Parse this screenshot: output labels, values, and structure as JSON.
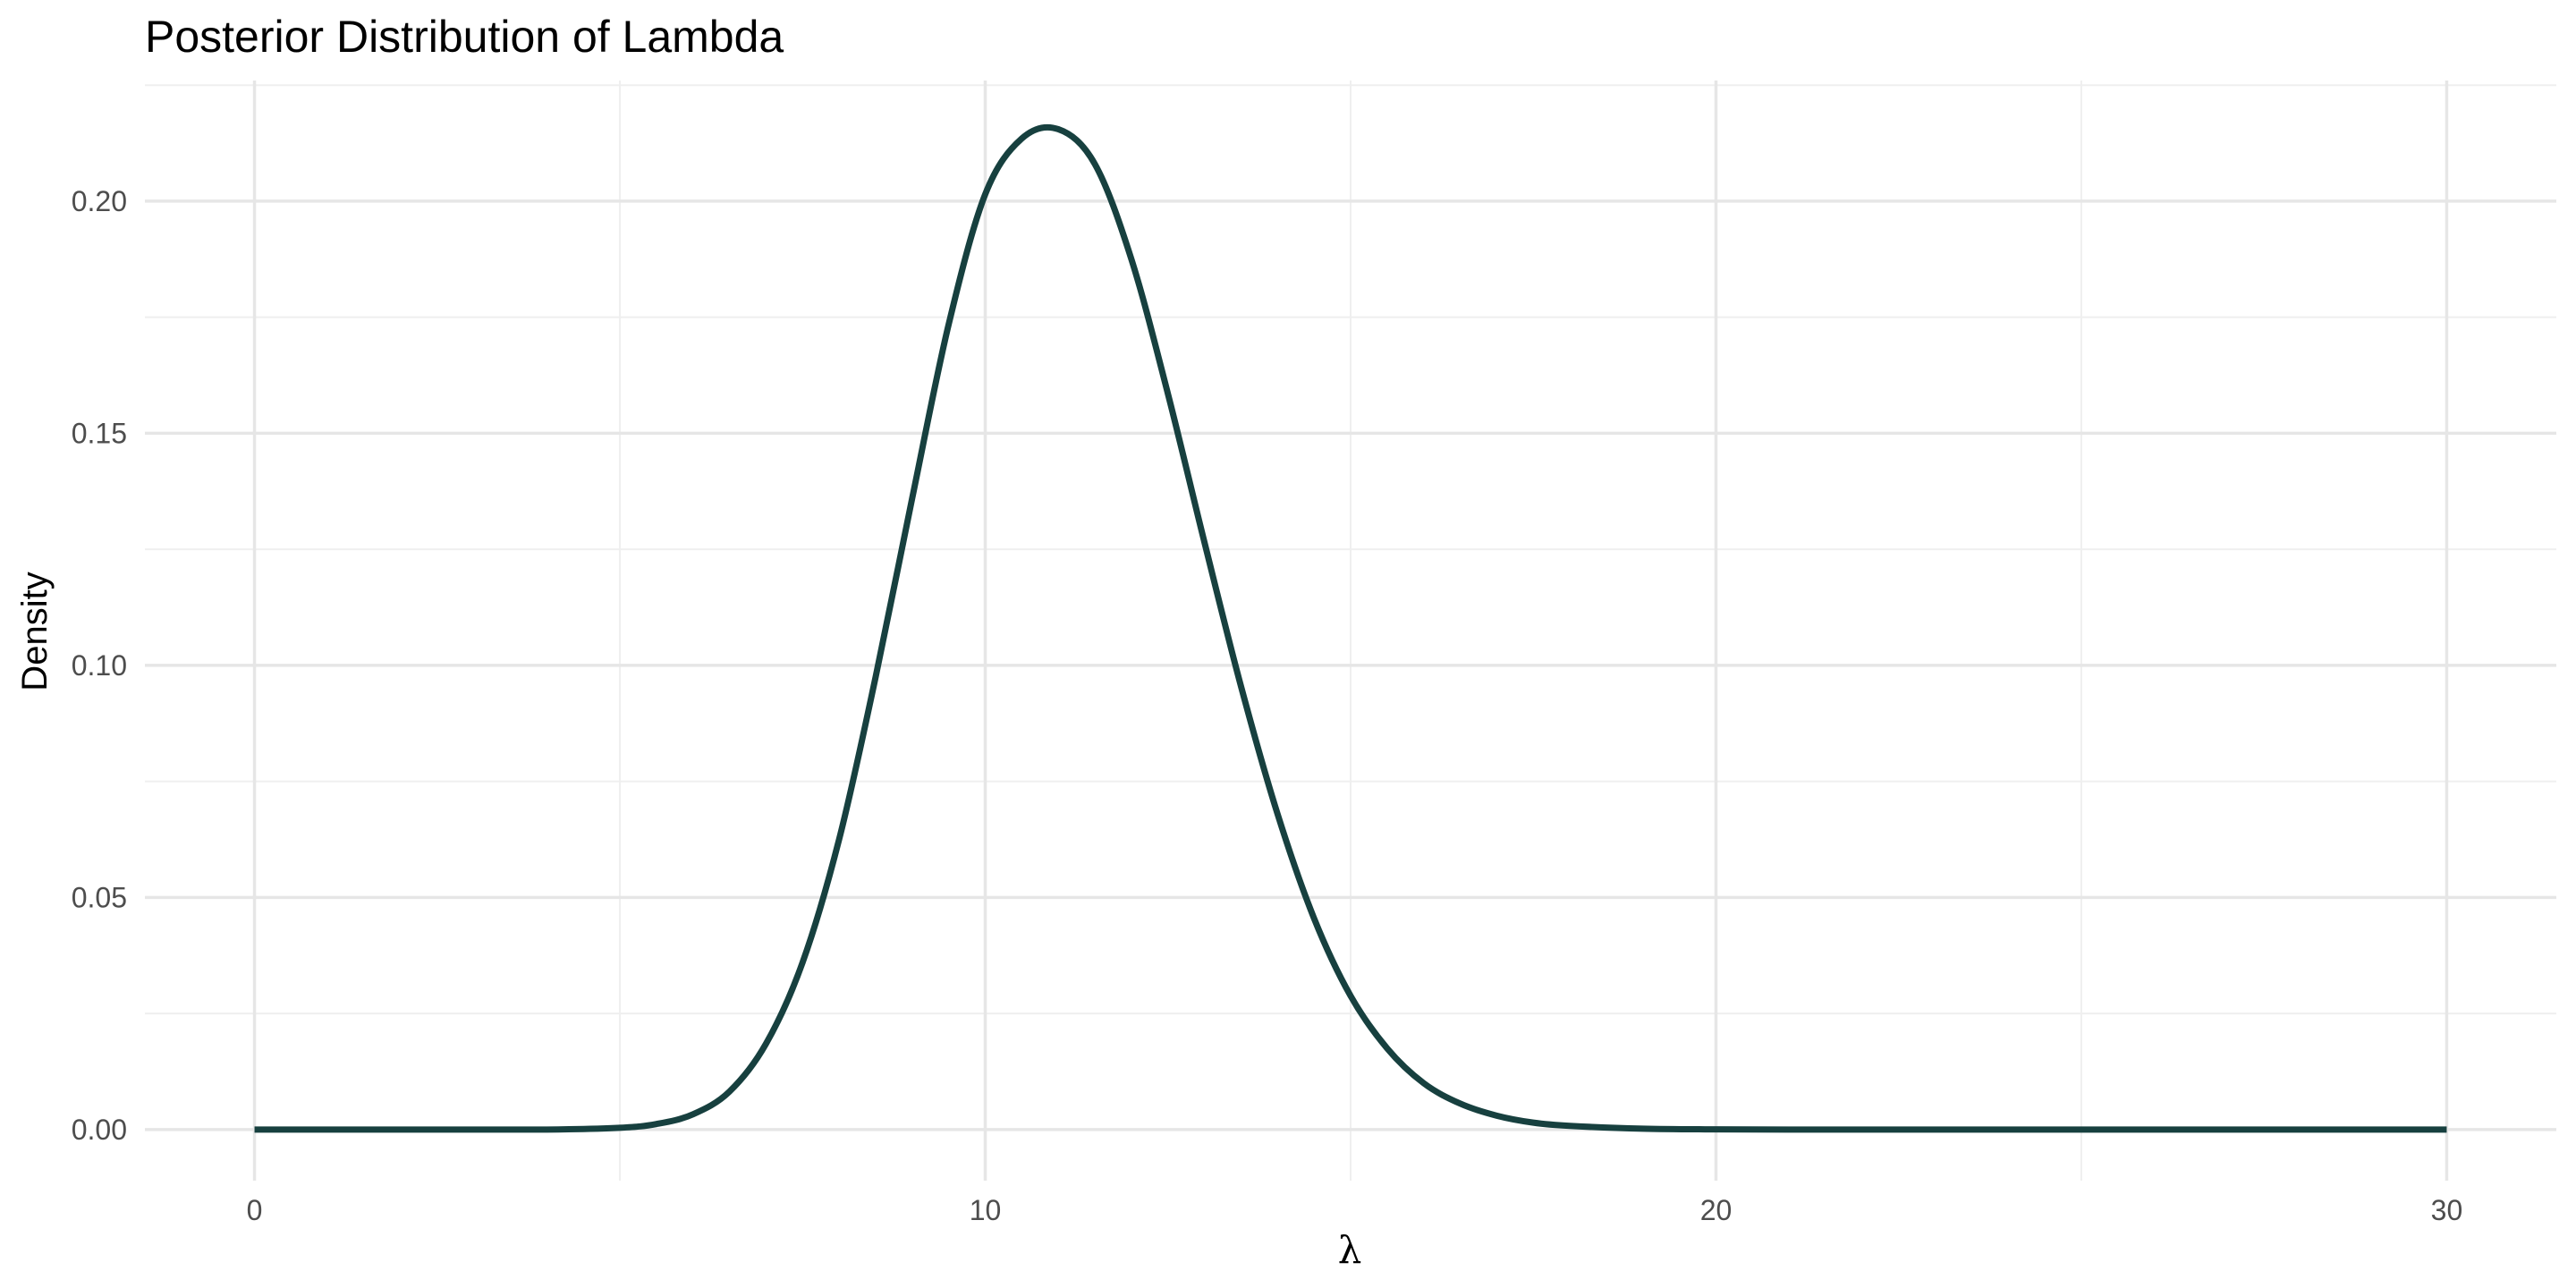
{
  "chart_data": {
    "type": "line",
    "title": "Posterior Distribution of Lambda",
    "xlabel": "λ",
    "ylabel": "Density",
    "xlim": [
      -1.5,
      31.5
    ],
    "ylim": [
      -0.011,
      0.226
    ],
    "x_ticks": [
      0,
      10,
      20,
      30
    ],
    "x_tick_labels": [
      "0",
      "10",
      "20",
      "30"
    ],
    "x_minor_ticks": [
      5,
      15,
      25
    ],
    "y_ticks": [
      0.0,
      0.05,
      0.1,
      0.15,
      0.2
    ],
    "y_tick_labels": [
      "0.00",
      "0.05",
      "0.10",
      "0.15",
      "0.20"
    ],
    "y_minor_ticks": [
      0.025,
      0.075,
      0.125,
      0.175,
      0.225
    ],
    "grid": true,
    "line_color": "#17403f",
    "series": [
      {
        "name": "posterior",
        "x": [
          0,
          1,
          2,
          3,
          4,
          5,
          5.5,
          6,
          6.5,
          7,
          7.5,
          8,
          8.5,
          9,
          9.5,
          10,
          10.5,
          11,
          11.5,
          12,
          12.5,
          13,
          13.5,
          14,
          14.5,
          15,
          15.5,
          16,
          16.5,
          17,
          17.5,
          18,
          19,
          20,
          21,
          22,
          23,
          25,
          30
        ],
        "y": [
          0.0,
          0.0,
          0.0,
          0.0,
          0.0,
          0.0004,
          0.0012,
          0.0033,
          0.0082,
          0.0185,
          0.036,
          0.0625,
          0.0975,
          0.136,
          0.1735,
          0.2015,
          0.2135,
          0.2155,
          0.208,
          0.1875,
          0.1585,
          0.1265,
          0.0955,
          0.068,
          0.0455,
          0.0288,
          0.0175,
          0.01,
          0.0056,
          0.003,
          0.0015,
          0.0008,
          0.0002,
          5e-05,
          0.0,
          0.0,
          0.0,
          0.0,
          0.0
        ]
      }
    ]
  }
}
